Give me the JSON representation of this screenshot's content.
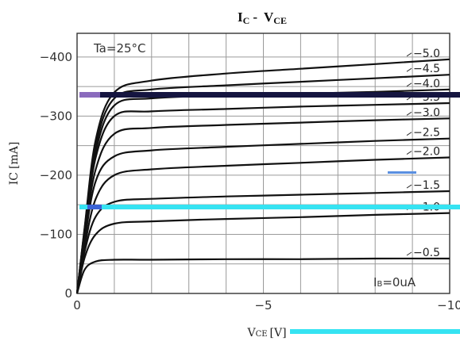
{
  "chart_data": {
    "type": "line",
    "title": {
      "main": "I",
      "sub_main": "C",
      "separator": "-",
      "main2": "V",
      "sub_main2": "CE"
    },
    "ylabel": {
      "main": "I",
      "sub": "C",
      "unit": "[mA]"
    },
    "xlabel": {
      "main": "V",
      "sub": "CE",
      "unit": "[V]"
    },
    "annotation": "Ta=25°C",
    "family_label": {
      "main": "I",
      "sub": "B",
      "value": "=0uA"
    },
    "xlim": [
      0,
      -10
    ],
    "ylim": [
      0,
      -440
    ],
    "x_ticks": [
      {
        "value": 0,
        "label": "0"
      },
      {
        "value": -5,
        "label": "−5"
      },
      {
        "value": -10,
        "label": "−10"
      }
    ],
    "y_ticks": [
      {
        "value": 0,
        "label": "0"
      },
      {
        "value": -100,
        "label": "−100"
      },
      {
        "value": -200,
        "label": "−200"
      },
      {
        "value": -300,
        "label": "−300"
      },
      {
        "value": -400,
        "label": "−400"
      }
    ],
    "grid": true,
    "curve_labels": [
      {
        "label": "−5.0",
        "ib_ma": -5.0
      },
      {
        "label": "−4.5",
        "ib_ma": -4.5
      },
      {
        "label": "−4.0",
        "ib_ma": -4.0
      },
      {
        "label": "−3.5",
        "ib_ma": -3.5
      },
      {
        "label": "−3.0",
        "ib_ma": -3.0
      },
      {
        "label": "−2.5",
        "ib_ma": -2.5
      },
      {
        "label": "−2.0",
        "ib_ma": -2.0
      },
      {
        "label": "−1.5",
        "ib_ma": -1.5
      },
      {
        "label": "−1.0",
        "ib_ma": -1.0
      },
      {
        "label": "−0.5",
        "ib_ma": -0.5
      }
    ],
    "series": [
      {
        "ib_ma": -5.0,
        "x": [
          0,
          -0.2,
          -0.5,
          -1.0,
          -2.0,
          -4.0,
          -6.0,
          -8.0,
          -10.0
        ],
        "y": [
          0,
          -110,
          -260,
          -340,
          -360,
          -372,
          -380,
          -388,
          -396
        ]
      },
      {
        "ib_ma": -4.5,
        "x": [
          0,
          -0.2,
          -0.5,
          -1.0,
          -2.0,
          -4.0,
          -6.0,
          -8.0,
          -10.0
        ],
        "y": [
          0,
          -108,
          -250,
          -330,
          -345,
          -352,
          -358,
          -364,
          -370
        ]
      },
      {
        "ib_ma": -4.0,
        "x": [
          0,
          -0.2,
          -0.5,
          -1.0,
          -2.0,
          -4.0,
          -6.0,
          -8.0,
          -10.0
        ],
        "y": [
          0,
          -105,
          -240,
          -318,
          -330,
          -335,
          -338,
          -341,
          -345
        ]
      },
      {
        "ib_ma": -3.5,
        "x": [
          0,
          -0.2,
          -0.5,
          -1.0,
          -2.0,
          -4.0,
          -6.0,
          -8.0,
          -10.0
        ],
        "y": [
          0,
          -100,
          -230,
          -300,
          -308,
          -312,
          -316,
          -319,
          -322
        ]
      },
      {
        "ib_ma": -3.0,
        "x": [
          0,
          -0.2,
          -0.5,
          -1.0,
          -2.0,
          -4.0,
          -6.0,
          -8.0,
          -10.0
        ],
        "y": [
          0,
          -95,
          -210,
          -270,
          -280,
          -285,
          -289,
          -293,
          -296
        ]
      },
      {
        "ib_ma": -2.5,
        "x": [
          0,
          -0.2,
          -0.5,
          -1.0,
          -2.0,
          -4.0,
          -6.0,
          -8.0,
          -10.0
        ],
        "y": [
          0,
          -88,
          -190,
          -232,
          -242,
          -248,
          -253,
          -258,
          -262
        ]
      },
      {
        "ib_ma": -2.0,
        "x": [
          0,
          -0.2,
          -0.5,
          -1.0,
          -2.0,
          -4.0,
          -6.0,
          -8.0,
          -10.0
        ],
        "y": [
          0,
          -78,
          -160,
          -200,
          -210,
          -216,
          -221,
          -226,
          -230
        ]
      },
      {
        "ib_ma": -1.5,
        "x": [
          0,
          -0.2,
          -0.5,
          -1.0,
          -2.0,
          -4.0,
          -6.0,
          -8.0,
          -10.0
        ],
        "y": [
          0,
          -70,
          -130,
          -155,
          -160,
          -164,
          -167,
          -170,
          -173
        ]
      },
      {
        "ib_ma": -1.0,
        "x": [
          0,
          -0.2,
          -0.5,
          -1.0,
          -2.0,
          -4.0,
          -6.0,
          -8.0,
          -10.0
        ],
        "y": [
          0,
          -60,
          -100,
          -118,
          -122,
          -126,
          -129,
          -133,
          -136
        ]
      },
      {
        "ib_ma": -0.5,
        "x": [
          0,
          -0.2,
          -0.5,
          -1.0,
          -2.0,
          -4.0,
          -6.0,
          -8.0,
          -10.0
        ],
        "y": [
          0,
          -40,
          -54,
          -57,
          -57,
          -58,
          -58,
          -59,
          -59
        ]
      }
    ]
  }
}
